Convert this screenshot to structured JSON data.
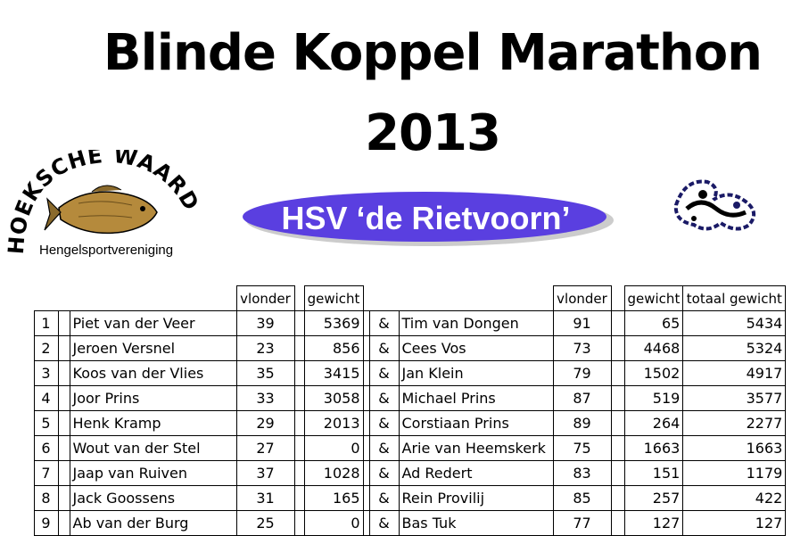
{
  "title_line1": "Blinde Koppel Marathon",
  "title_line2": "2013",
  "logo_left": {
    "arc_text": "HOEKSCHE WAARD",
    "subtitle": "Hengelsportvereniging"
  },
  "banner_text": "HSV ‘de Rietvoorn’",
  "columns": {
    "vlonder": "vlonder",
    "gewicht": "gewicht",
    "totaal": "totaal gewicht"
  },
  "rows": [
    {
      "rank": "1",
      "name1": "Piet van der Veer",
      "vlonder1": "39",
      "gewicht1": "5369",
      "amp": "&",
      "name2": "Tim van Dongen",
      "vlonder2": "91",
      "gewicht2": "65",
      "totaal": "5434"
    },
    {
      "rank": "2",
      "name1": "Jeroen Versnel",
      "vlonder1": "23",
      "gewicht1": "856",
      "amp": "&",
      "name2": "Cees Vos",
      "vlonder2": "73",
      "gewicht2": "4468",
      "totaal": "5324"
    },
    {
      "rank": "3",
      "name1": "Koos van der Vlies",
      "vlonder1": "35",
      "gewicht1": "3415",
      "amp": "&",
      "name2": "Jan Klein",
      "vlonder2": "79",
      "gewicht2": "1502",
      "totaal": "4917"
    },
    {
      "rank": "4",
      "name1": "Joor Prins",
      "vlonder1": "33",
      "gewicht1": "3058",
      "amp": "&",
      "name2": "Michael Prins",
      "vlonder2": "87",
      "gewicht2": "519",
      "totaal": "3577"
    },
    {
      "rank": "5",
      "name1": "Henk Kramp",
      "vlonder1": "29",
      "gewicht1": "2013",
      "amp": "&",
      "name2": "Corstiaan Prins",
      "vlonder2": "89",
      "gewicht2": "264",
      "totaal": "2277"
    },
    {
      "rank": "6",
      "name1": "Wout van der Stel",
      "vlonder1": "27",
      "gewicht1": "0",
      "amp": "&",
      "name2": "Arie van Heemskerk",
      "vlonder2": "75",
      "gewicht2": "1663",
      "totaal": "1663"
    },
    {
      "rank": "7",
      "name1": "Jaap van Ruiven",
      "vlonder1": "37",
      "gewicht1": "1028",
      "amp": "&",
      "name2": "Ad Redert",
      "vlonder2": "83",
      "gewicht2": "151",
      "totaal": "1179"
    },
    {
      "rank": "8",
      "name1": "Jack Goossens",
      "vlonder1": "31",
      "gewicht1": "165",
      "amp": "&",
      "name2": "Rein Provilij",
      "vlonder2": "85",
      "gewicht2": "257",
      "totaal": "422"
    },
    {
      "rank": "9",
      "name1": "Ab van der Burg",
      "vlonder1": "25",
      "gewicht1": "0",
      "amp": "&",
      "name2": "Bas Tuk",
      "vlonder2": "77",
      "gewicht2": "127",
      "totaal": "127"
    }
  ]
}
